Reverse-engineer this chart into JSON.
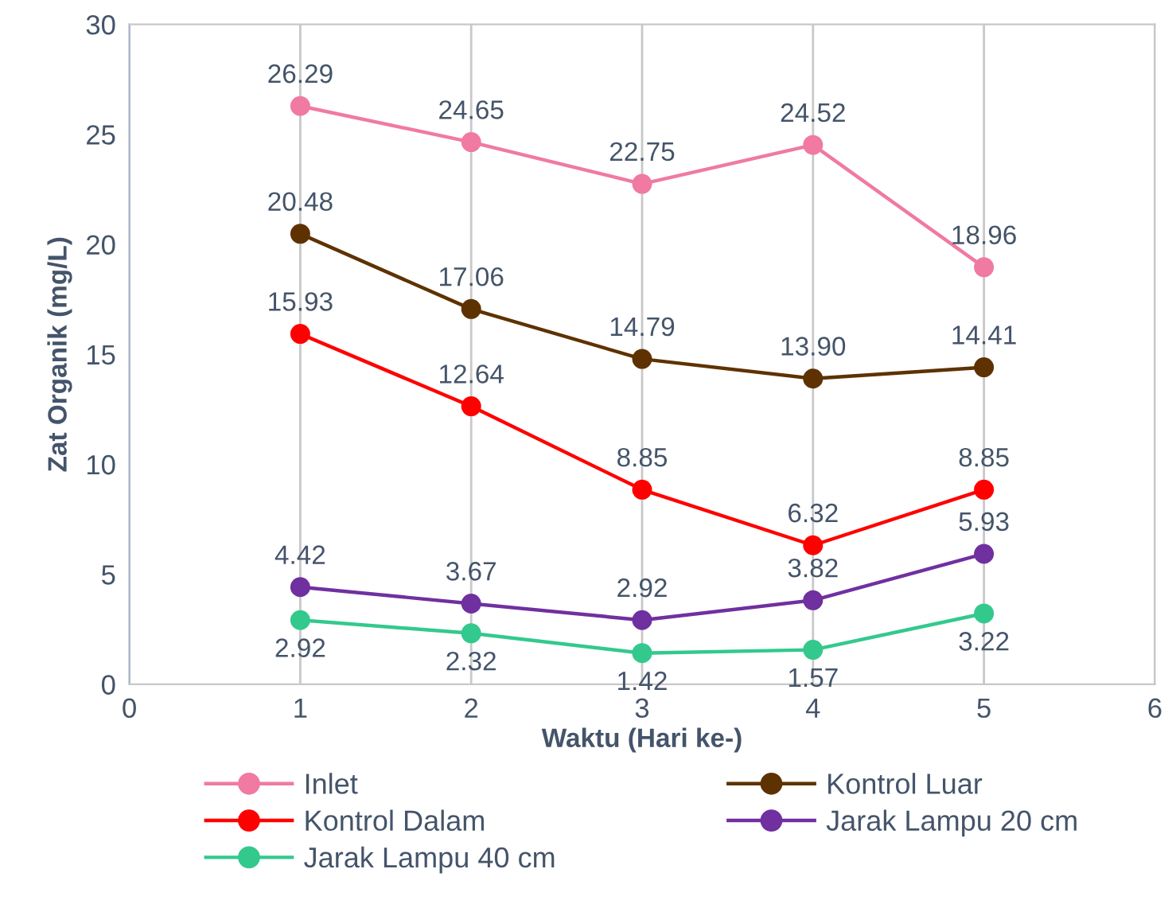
{
  "chart_data": {
    "type": "line",
    "xlabel": "Waktu (Hari ke-)",
    "ylabel": "Zat Organik (mg/L)",
    "x": [
      1,
      2,
      3,
      4,
      5
    ],
    "series": [
      {
        "name": "Inlet",
        "color": "#f07aa2",
        "values": [
          26.29,
          24.65,
          22.75,
          24.52,
          18.96
        ]
      },
      {
        "name": "Kontrol Luar",
        "color": "#5e3200",
        "values": [
          20.48,
          17.06,
          14.79,
          13.9,
          14.41
        ],
        "value_labels": [
          "20.48",
          "17.06",
          "14.79",
          "13.90",
          "14.41"
        ]
      },
      {
        "name": "Kontrol Dalam",
        "color": "#ff0000",
        "values": [
          15.93,
          12.64,
          8.85,
          6.32,
          8.85
        ]
      },
      {
        "name": "Jarak Lampu 20 cm",
        "color": "#7030a0",
        "values": [
          4.42,
          3.67,
          2.92,
          3.82,
          5.93
        ]
      },
      {
        "name": "Jarak Lampu 40 cm",
        "color": "#33c98d",
        "values": [
          2.92,
          2.32,
          1.42,
          1.57,
          3.22
        ]
      }
    ],
    "xlim": [
      0,
      6
    ],
    "xticks": [
      0,
      1,
      2,
      3,
      4,
      5,
      6
    ],
    "ylim": [
      0,
      30
    ],
    "yticks": [
      0,
      5,
      10,
      15,
      20,
      25,
      30
    ],
    "grid": "x",
    "legend": "bottom",
    "marker": "circle",
    "line_style": "solid",
    "data_labels": true
  }
}
